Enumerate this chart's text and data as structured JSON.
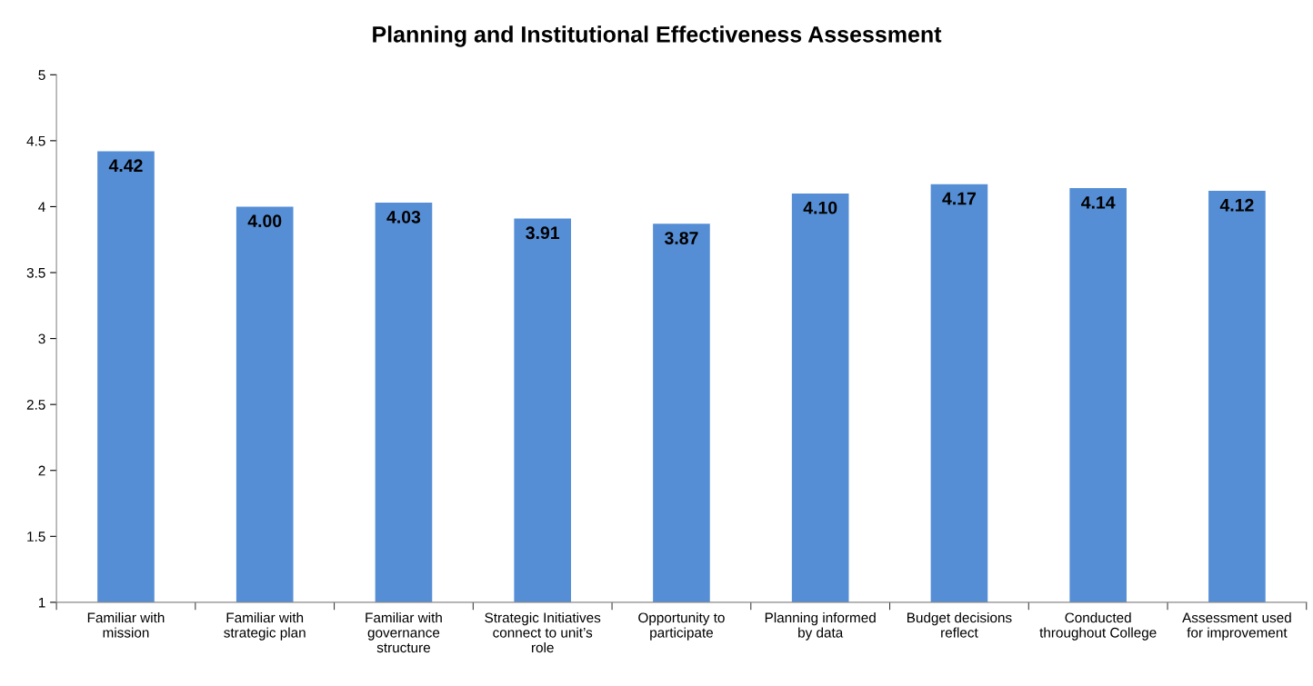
{
  "chart_data": {
    "type": "bar",
    "title": "Planning and Institutional Effectiveness Assessment",
    "categories": [
      "Familiar with\nmission",
      "Familiar with\nstrategic plan",
      "Familiar with\ngovernance\nstructure",
      "Strategic Initiatives\nconnect to unit’s\nrole",
      "Opportunity to\nparticipate",
      "Planning informed\nby data",
      "Budget decisions\nreflect",
      "Conducted\nthroughout College",
      "Assessment used\nfor improvement"
    ],
    "values": [
      4.42,
      4.0,
      4.03,
      3.91,
      3.87,
      4.1,
      4.17,
      4.14,
      4.12
    ],
    "value_labels": [
      "4.42",
      "4.00",
      "4.03",
      "3.91",
      "3.87",
      "4.10",
      "4.17",
      "4.14",
      "4.12"
    ],
    "color": "#558ed5",
    "ylim": [
      1,
      5
    ],
    "yticks": [
      1,
      1.5,
      2,
      2.5,
      3,
      3.5,
      4,
      4.5,
      5
    ],
    "grid": false,
    "legend": false
  }
}
